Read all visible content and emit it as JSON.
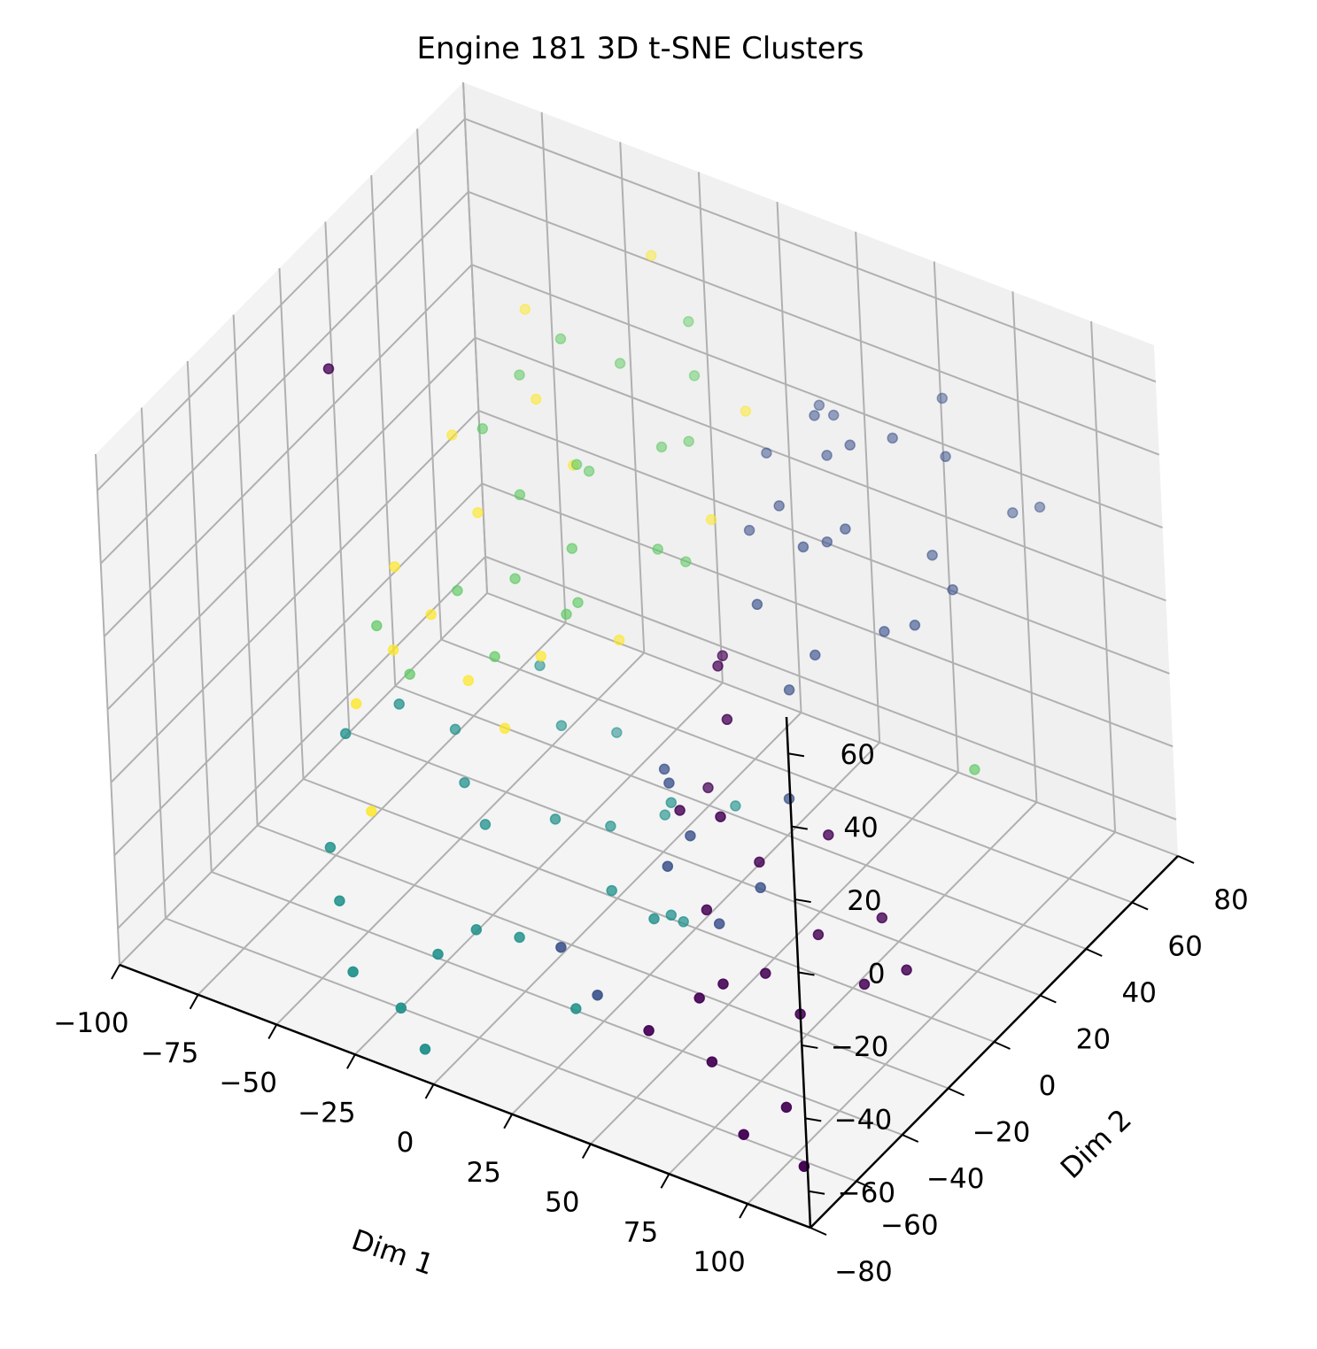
{
  "chart_data": {
    "type": "scatter",
    "title": "Engine 181 3D t-SNE Clusters",
    "xlabel": "Dim 1",
    "ylabel": "Dim 2",
    "zlabel": "",
    "xlim": [
      -100,
      120
    ],
    "ylim": [
      -80,
      80
    ],
    "zlim": [
      -70,
      70
    ],
    "xticks": [
      "−100",
      "−75",
      "−50",
      "−25",
      "0",
      "25",
      "50",
      "75",
      "100"
    ],
    "yticks": [
      "−80",
      "−60",
      "−40",
      "−20",
      "0",
      "20",
      "40",
      "60",
      "80"
    ],
    "zticks": [
      "−60",
      "−40",
      "−20",
      "0",
      "20",
      "40",
      "60"
    ],
    "grid": true,
    "colors": {
      "c0": "#440154",
      "c1": "#3b528b",
      "c2": "#21918c",
      "c3": "#5ec962",
      "c4": "#fde725",
      "pane_left": "#f3f3f3",
      "pane_back": "#f0f0f0",
      "pane_floor": "#f4f4f4",
      "grid": "#b0b0b0"
    },
    "series": [
      {
        "color_key": "c0",
        "points": [
          [
            85,
            -20,
            -12
          ],
          [
            70,
            -30,
            -18
          ],
          [
            105,
            -25,
            -25
          ],
          [
            82,
            -45,
            -35
          ],
          [
            60,
            -40,
            -28
          ],
          [
            95,
            -48,
            -40
          ],
          [
            110,
            -40,
            -32
          ],
          [
            120,
            -35,
            -28
          ],
          [
            55,
            -60,
            -50
          ],
          [
            75,
            -60,
            -52
          ],
          [
            100,
            -62,
            -55
          ],
          [
            115,
            -75,
            -58
          ],
          [
            92,
            -70,
            -60
          ],
          [
            68,
            -55,
            -40
          ],
          [
            45,
            -30,
            -12
          ],
          [
            50,
            -15,
            5
          ],
          [
            40,
            -5,
            10
          ],
          [
            62,
            -35,
            -5
          ],
          [
            30,
            10,
            0
          ],
          [
            35,
            -5,
            -25
          ],
          [
            -70,
            -20,
            65
          ],
          [
            72,
            -50,
            -38
          ],
          [
            88,
            -30,
            -32
          ]
        ]
      },
      {
        "color_key": "c1",
        "points": [
          [
            30,
            55,
            40
          ],
          [
            40,
            48,
            45
          ],
          [
            35,
            30,
            30
          ],
          [
            55,
            35,
            50
          ],
          [
            65,
            40,
            52
          ],
          [
            70,
            55,
            55
          ],
          [
            78,
            45,
            48
          ],
          [
            60,
            25,
            35
          ],
          [
            50,
            20,
            30
          ],
          [
            42,
            10,
            18
          ],
          [
            80,
            35,
            28
          ],
          [
            90,
            30,
            25
          ],
          [
            75,
            20,
            15
          ],
          [
            60,
            10,
            10
          ],
          [
            50,
            30,
            25
          ],
          [
            40,
            40,
            50
          ],
          [
            45,
            38,
            42
          ],
          [
            20,
            45,
            30
          ],
          [
            25,
            30,
            20
          ],
          [
            55,
            5,
            2
          ],
          [
            65,
            -10,
            -15
          ],
          [
            38,
            -25,
            -10
          ],
          [
            25,
            -10,
            -20
          ],
          [
            48,
            -40,
            -20
          ],
          [
            35,
            -55,
            -50
          ],
          [
            20,
            -50,
            -45
          ],
          [
            100,
            55,
            35
          ],
          [
            95,
            50,
            35
          ],
          [
            85,
            20,
            20
          ],
          [
            70,
            -30,
            -25
          ],
          [
            60,
            -35,
            -35
          ],
          [
            48,
            -30,
            -18
          ]
        ]
      },
      {
        "color_key": "c2",
        "points": [
          [
            -35,
            25,
            -50
          ],
          [
            -25,
            35,
            -55
          ],
          [
            -60,
            -10,
            -30
          ],
          [
            -70,
            -20,
            -35
          ],
          [
            -50,
            0,
            -40
          ],
          [
            -40,
            -10,
            -45
          ],
          [
            -30,
            -15,
            -50
          ],
          [
            -15,
            -5,
            -50
          ],
          [
            -5,
            5,
            -55
          ],
          [
            5,
            15,
            -55
          ],
          [
            -65,
            -35,
            -55
          ],
          [
            -55,
            -45,
            -60
          ],
          [
            -40,
            -60,
            -65
          ],
          [
            -20,
            -50,
            -60
          ],
          [
            -5,
            -35,
            -60
          ],
          [
            10,
            -15,
            -55
          ],
          [
            25,
            -10,
            -60
          ],
          [
            -25,
            -60,
            -70
          ],
          [
            -10,
            -70,
            -70
          ],
          [
            20,
            -45,
            -65
          ],
          [
            -15,
            -40,
            -58
          ],
          [
            35,
            -30,
            -45
          ],
          [
            15,
            5,
            -42
          ],
          [
            28,
            15,
            -45
          ],
          [
            -45,
            30,
            -40
          ],
          [
            25,
            -5,
            -65
          ]
        ]
      },
      {
        "color_key": "c3",
        "points": [
          [
            -45,
            45,
            40
          ],
          [
            -55,
            40,
            30
          ],
          [
            -30,
            50,
            35
          ],
          [
            -15,
            60,
            45
          ],
          [
            -10,
            55,
            35
          ],
          [
            -60,
            30,
            20
          ],
          [
            -45,
            25,
            10
          ],
          [
            -30,
            35,
            15
          ],
          [
            -10,
            40,
            25
          ],
          [
            -5,
            45,
            25
          ],
          [
            -55,
            10,
            -10
          ],
          [
            -40,
            15,
            -5
          ],
          [
            -25,
            20,
            5
          ],
          [
            -20,
            15,
            -5
          ],
          [
            -5,
            30,
            5
          ],
          [
            0,
            35,
            0
          ],
          [
            -70,
            -5,
            -15
          ],
          [
            -60,
            -5,
            -25
          ],
          [
            -40,
            5,
            -20
          ],
          [
            -20,
            10,
            -5
          ],
          [
            110,
            10,
            -5
          ],
          [
            -30,
            30,
            20
          ]
        ]
      },
      {
        "color_key": "c4",
        "points": [
          [
            -60,
            50,
            40
          ],
          [
            -30,
            65,
            55
          ],
          [
            -50,
            40,
            25
          ],
          [
            -70,
            30,
            15
          ],
          [
            -35,
            35,
            15
          ],
          [
            -55,
            20,
            5
          ],
          [
            -75,
            10,
            -10
          ],
          [
            -60,
            5,
            -15
          ],
          [
            -65,
            -5,
            -20
          ],
          [
            -45,
            0,
            -25
          ],
          [
            -30,
            -5,
            -30
          ],
          [
            -70,
            -15,
            -30
          ],
          [
            -55,
            -30,
            -45
          ],
          [
            -15,
            25,
            -20
          ],
          [
            5,
            40,
            10
          ],
          [
            10,
            50,
            35
          ],
          [
            -25,
            5,
            -15
          ]
        ]
      }
    ]
  }
}
